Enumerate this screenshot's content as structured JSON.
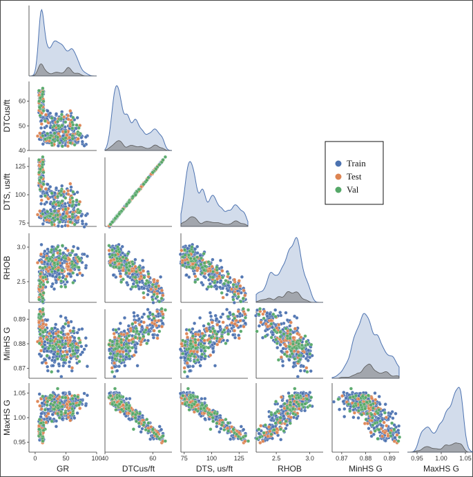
{
  "chart_data": {
    "type": "scatter",
    "variables": [
      "GR",
      "DTCus/ft",
      "DTS, us/ft",
      "RHOB",
      "MinHS G",
      "MaxHS G"
    ],
    "axes": {
      "GR": {
        "range": [
          -10,
          100
        ],
        "ticks": [
          0,
          50,
          100
        ]
      },
      "DTCus/ft": {
        "range": [
          40,
          68
        ],
        "ticks": [
          40,
          50,
          60
        ],
        "xticks": [
          40,
          60
        ]
      },
      "DTS, us/ft": {
        "range": [
          72,
          133
        ],
        "ticks": [
          75,
          100,
          125
        ]
      },
      "RHOB": {
        "range": [
          2.2,
          3.2
        ],
        "ticks": [
          2.5,
          3.0
        ]
      },
      "MinHS G": {
        "range": [
          0.866,
          0.894
        ],
        "ticks": [
          0.87,
          0.88,
          0.89
        ]
      },
      "MaxHS G": {
        "range": [
          0.93,
          1.07
        ],
        "ticks": [
          0.95,
          1.0,
          1.05
        ]
      }
    },
    "series": [
      {
        "name": "Train",
        "color": "#4c72b0"
      },
      {
        "name": "Test",
        "color": "#dd8452"
      },
      {
        "name": "Val",
        "color": "#55a868"
      }
    ],
    "diagonal": "kde",
    "layout": "lower-triangle pair plot",
    "legend_position": "right",
    "grid": false
  }
}
